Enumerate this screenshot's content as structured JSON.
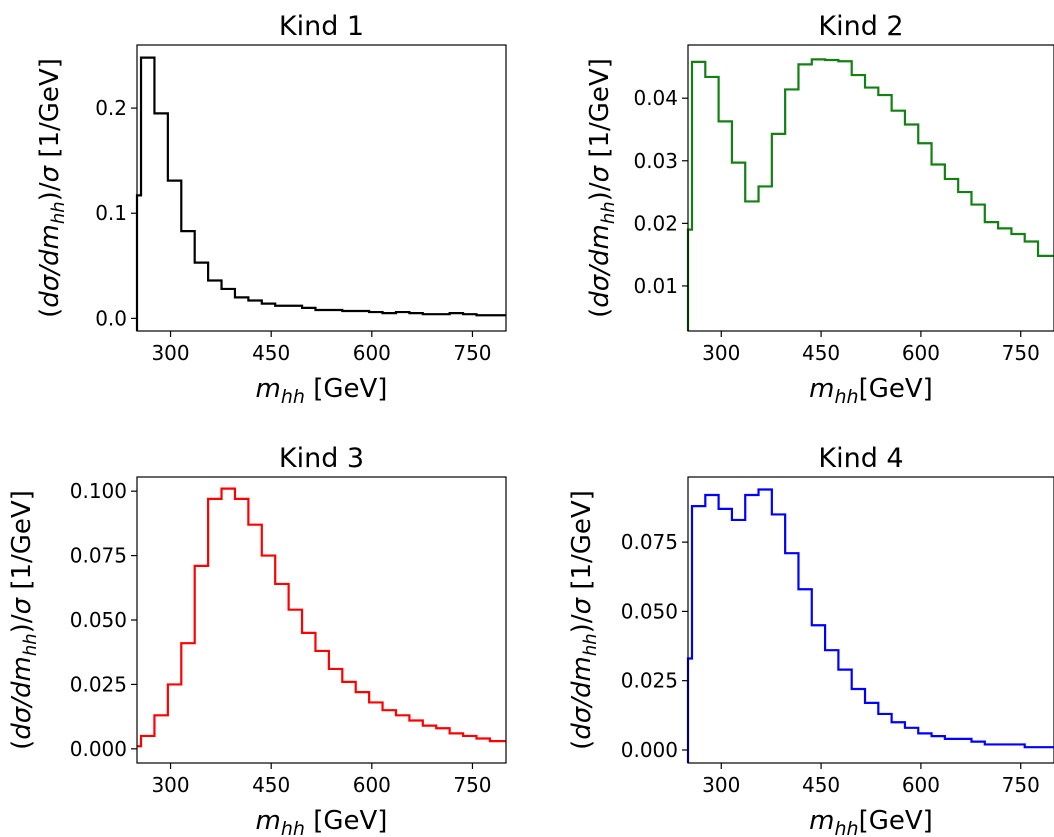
{
  "chart_data": [
    {
      "type": "step",
      "title": "Kind 1",
      "xlabel_main": "m",
      "xlabel_sub": "hh",
      "xlabel_unit": " [GeV]",
      "ylabel": "(dσ/dm_hh)/σ [1/GeV]",
      "color": "#000000",
      "xlim": [
        250,
        800
      ],
      "ylim": [
        -0.012,
        0.26
      ],
      "xticks": [
        300,
        450,
        600,
        750
      ],
      "xtick_labels": [
        "300",
        "450",
        "600",
        "750"
      ],
      "yticks": [
        0.0,
        0.1,
        0.2
      ],
      "ytick_labels": [
        "0.0",
        "0.1",
        "0.2"
      ],
      "bin_edges": [
        250,
        256,
        276,
        296,
        316,
        336,
        356,
        376,
        396,
        416,
        436,
        456,
        476,
        496,
        516,
        536,
        556,
        576,
        596,
        616,
        636,
        656,
        676,
        696,
        716,
        736,
        756,
        776,
        800
      ],
      "values": [
        0.117,
        0.248,
        0.195,
        0.131,
        0.083,
        0.053,
        0.036,
        0.028,
        0.02,
        0.017,
        0.014,
        0.012,
        0.012,
        0.01,
        0.008,
        0.008,
        0.007,
        0.007,
        0.006,
        0.005,
        0.006,
        0.005,
        0.004,
        0.004,
        0.005,
        0.004,
        0.003,
        0.003
      ]
    },
    {
      "type": "step",
      "title": "Kind 2",
      "xlabel_main": "m",
      "xlabel_sub": "hh",
      "xlabel_unit": "[GeV]",
      "ylabel": "(dσ/dm_hh)/σ [1/GeV]",
      "color": "#128012",
      "xlim": [
        250,
        800
      ],
      "ylim": [
        0.0028,
        0.0485
      ],
      "xticks": [
        300,
        450,
        600,
        750
      ],
      "xtick_labels": [
        "300",
        "450",
        "600",
        "750"
      ],
      "yticks": [
        0.01,
        0.02,
        0.03,
        0.04
      ],
      "ytick_labels": [
        "0.01",
        "0.02",
        "0.03",
        "0.04"
      ],
      "bin_edges": [
        250,
        256,
        276,
        296,
        316,
        336,
        356,
        376,
        396,
        416,
        436,
        456,
        476,
        496,
        516,
        536,
        556,
        576,
        596,
        616,
        636,
        656,
        676,
        696,
        716,
        736,
        756,
        776,
        800
      ],
      "values": [
        0.019,
        0.0458,
        0.0434,
        0.0363,
        0.0297,
        0.0235,
        0.0259,
        0.0343,
        0.0414,
        0.0454,
        0.0462,
        0.0461,
        0.0459,
        0.0437,
        0.0417,
        0.0405,
        0.038,
        0.0358,
        0.0328,
        0.0294,
        0.0271,
        0.025,
        0.023,
        0.0202,
        0.0192,
        0.0183,
        0.0171,
        0.0148
      ]
    },
    {
      "type": "step",
      "title": "Kind 3",
      "xlabel_main": "m",
      "xlabel_sub": "hh",
      "xlabel_unit": " [GeV]",
      "ylabel": "(dσ/dm_hh)/σ [1/GeV]",
      "color": "#ff0000",
      "xlim": [
        250,
        800
      ],
      "ylim": [
        -0.0055,
        0.1055
      ],
      "xticks": [
        300,
        450,
        600,
        750
      ],
      "xtick_labels": [
        "300",
        "450",
        "600",
        "750"
      ],
      "yticks": [
        0.0,
        0.025,
        0.05,
        0.075,
        0.1
      ],
      "ytick_labels": [
        "0.000",
        "0.025",
        "0.050",
        "0.075",
        "0.100"
      ],
      "bin_edges": [
        250,
        256,
        276,
        296,
        316,
        336,
        356,
        376,
        396,
        416,
        436,
        456,
        476,
        496,
        516,
        536,
        556,
        576,
        596,
        616,
        636,
        656,
        676,
        696,
        716,
        736,
        756,
        776,
        800
      ],
      "values": [
        0.001,
        0.005,
        0.013,
        0.025,
        0.041,
        0.071,
        0.097,
        0.101,
        0.097,
        0.087,
        0.075,
        0.064,
        0.054,
        0.045,
        0.038,
        0.031,
        0.026,
        0.022,
        0.018,
        0.015,
        0.013,
        0.011,
        0.009,
        0.008,
        0.006,
        0.005,
        0.004,
        0.003
      ]
    },
    {
      "type": "step",
      "title": "Kind 4",
      "xlabel_main": "m",
      "xlabel_sub": "hh",
      "xlabel_unit": "[GeV]",
      "ylabel": "(dσ/dm_hh)/σ [1/GeV]",
      "color": "#0000ff",
      "xlim": [
        250,
        800
      ],
      "ylim": [
        -0.0047,
        0.0985
      ],
      "xticks": [
        300,
        450,
        600,
        750
      ],
      "xtick_labels": [
        "300",
        "450",
        "600",
        "750"
      ],
      "yticks": [
        0.0,
        0.025,
        0.05,
        0.075
      ],
      "ytick_labels": [
        "0.000",
        "0.025",
        "0.050",
        "0.075"
      ],
      "bin_edges": [
        250,
        256,
        276,
        296,
        316,
        336,
        356,
        376,
        396,
        416,
        436,
        456,
        476,
        496,
        516,
        536,
        556,
        576,
        596,
        616,
        636,
        656,
        676,
        696,
        716,
        736,
        756,
        776,
        800
      ],
      "values": [
        0.033,
        0.088,
        0.092,
        0.087,
        0.083,
        0.092,
        0.094,
        0.085,
        0.071,
        0.058,
        0.045,
        0.036,
        0.029,
        0.022,
        0.017,
        0.013,
        0.01,
        0.008,
        0.006,
        0.005,
        0.004,
        0.004,
        0.003,
        0.002,
        0.002,
        0.002,
        0.001,
        0.001
      ]
    }
  ]
}
